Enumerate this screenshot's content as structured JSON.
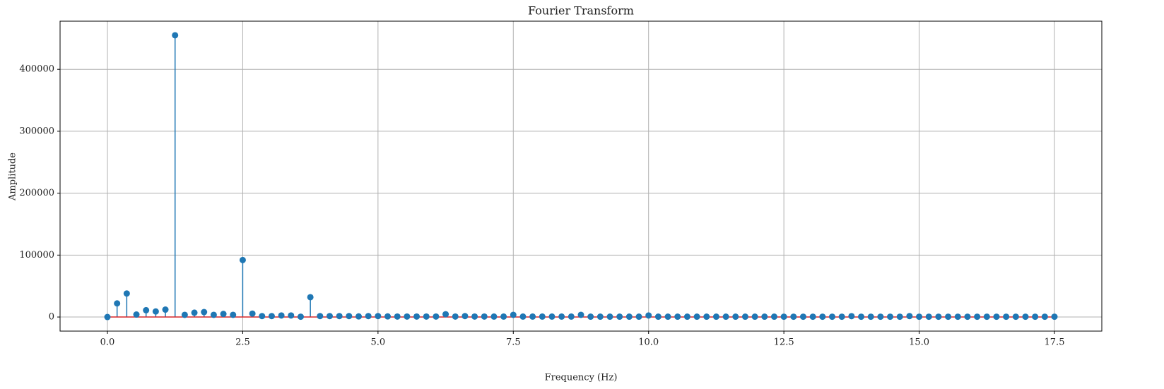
{
  "chart_data": {
    "type": "stem",
    "title": "Fourier Transform",
    "x_label": "Frequency (Hz)",
    "y_label": "Amplitude",
    "x": [
      0,
      0.1786,
      0.3571,
      0.5357,
      0.7143,
      0.8929,
      1.0714,
      1.25,
      1.4286,
      1.6071,
      1.7857,
      1.9643,
      2.1429,
      2.3214,
      2.5,
      2.6786,
      2.8571,
      3.0357,
      3.2143,
      3.3929,
      3.5714,
      3.75,
      3.9286,
      4.1071,
      4.2857,
      4.4643,
      4.6429,
      4.8214,
      5,
      5.1786,
      5.3571,
      5.5357,
      5.7143,
      5.8929,
      6.0714,
      6.25,
      6.4286,
      6.6071,
      6.7857,
      6.9643,
      7.1429,
      7.3214,
      7.5,
      7.6786,
      7.8571,
      8.0357,
      8.2143,
      8.3929,
      8.5714,
      8.75,
      8.9286,
      9.1071,
      9.2857,
      9.4643,
      9.6429,
      9.8214,
      10,
      10.1786,
      10.3571,
      10.5357,
      10.7143,
      10.8929,
      11.0714,
      11.25,
      11.4286,
      11.6071,
      11.7857,
      11.9643,
      12.1429,
      12.3214,
      12.5,
      12.6786,
      12.8571,
      13.0357,
      13.2143,
      13.3929,
      13.5714,
      13.75,
      13.9286,
      14.1071,
      14.2857,
      14.4643,
      14.6429,
      14.8214,
      15,
      15.1786,
      15.3571,
      15.5357,
      15.7143,
      15.8929,
      16.0714,
      16.25,
      16.4286,
      16.6071,
      16.7857,
      16.9643,
      17.1429,
      17.3214,
      17.5
    ],
    "values": [
      0,
      22000,
      38000,
      4000,
      11000,
      9000,
      12000,
      455000,
      3500,
      7000,
      8000,
      3500,
      5000,
      3500,
      92000,
      5500,
      1500,
      1500,
      2500,
      2500,
      500,
      32000,
      1500,
      1500,
      1500,
      1500,
      1000,
      1500,
      1500,
      1000,
      800,
      800,
      800,
      800,
      800,
      4500,
      800,
      1500,
      800,
      800,
      700,
      700,
      3500,
      700,
      700,
      700,
      700,
      700,
      700,
      3500,
      600,
      600,
      600,
      600,
      600,
      600,
      2500,
      600,
      600,
      600,
      600,
      600,
      600,
      600,
      600,
      600,
      600,
      600,
      600,
      600,
      500,
      500,
      500,
      500,
      500,
      500,
      500,
      1400,
      500,
      500,
      500,
      500,
      500,
      1500,
      500,
      500,
      500,
      500,
      500,
      500,
      500,
      500,
      500,
      500,
      500,
      500,
      500,
      500,
      500
    ],
    "color": "#1f77b4",
    "baseline_color": "#d62728",
    "xlim": [
      -0.875,
      18.375
    ],
    "xticks": [
      {
        "value": 0,
        "label": "0.0"
      },
      2.5,
      {
        "value": 5,
        "label": "5.0"
      },
      7.5,
      {
        "value": 10,
        "label": "10.0"
      },
      12.5,
      {
        "value": 15,
        "label": "15.0"
      },
      17.5
    ],
    "ylim": [
      -22750,
      477750
    ],
    "yticks": [
      0,
      100000,
      200000,
      300000,
      400000
    ],
    "grid": true
  }
}
